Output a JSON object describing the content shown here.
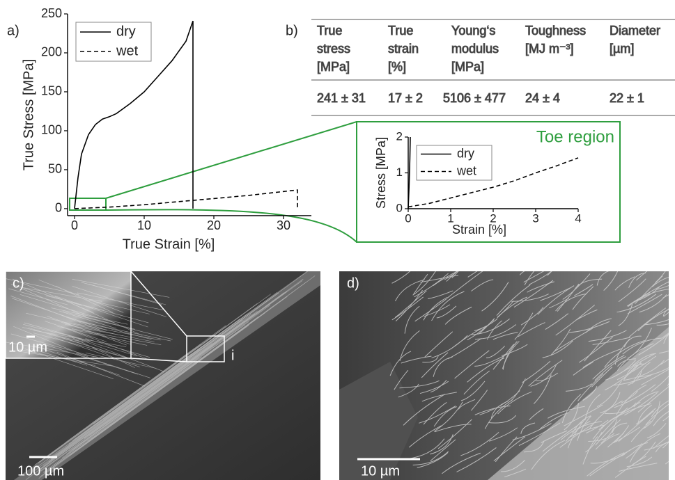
{
  "panel_labels": {
    "a": "a)",
    "b": "b)",
    "c": "c)",
    "d": "d)"
  },
  "chart_data": [
    {
      "type": "line",
      "xlabel": "True Strain [%]",
      "ylabel": "True Stress [MPa]",
      "xlim": [
        -1,
        34
      ],
      "ylim": [
        -9,
        250
      ],
      "xticks": [
        0,
        10,
        20,
        30
      ],
      "yticks": [
        0,
        50,
        100,
        150,
        200,
        250
      ],
      "legend": "upper left",
      "series": [
        {
          "name": "dry",
          "color": "#000000",
          "line_style": "solid",
          "x": [
            0,
            0.5,
            1,
            2,
            3,
            4,
            5,
            6,
            8,
            10,
            12,
            14,
            16,
            17,
            17
          ],
          "values": [
            0,
            40,
            70,
            95,
            108,
            115,
            118,
            122,
            135,
            150,
            170,
            190,
            215,
            241,
            0
          ]
        },
        {
          "name": "wet",
          "color": "#000000",
          "line_style": "dashed",
          "x": [
            0,
            5,
            10,
            15,
            20,
            25,
            30,
            32,
            32
          ],
          "values": [
            0,
            2,
            5,
            9,
            13,
            17,
            22,
            24,
            0
          ]
        }
      ]
    },
    {
      "type": "line",
      "title": "Toe region",
      "xlabel": "Strain [%]",
      "ylabel": "Stress [MPa]",
      "xlim": [
        0,
        4
      ],
      "ylim": [
        0,
        2
      ],
      "xticks": [
        0,
        1,
        2,
        3,
        4
      ],
      "yticks": [
        0,
        1,
        2
      ],
      "legend": "upper left",
      "series": [
        {
          "name": "dry",
          "color": "#000000",
          "line_style": "solid",
          "x": [
            0,
            0.02,
            0.04,
            0.05
          ],
          "values": [
            0,
            0.6,
            1.4,
            2
          ]
        },
        {
          "name": "wet",
          "color": "#000000",
          "line_style": "dashed",
          "x": [
            0,
            0.5,
            1,
            1.5,
            2,
            2.5,
            3,
            3.5,
            4
          ],
          "values": [
            0.05,
            0.15,
            0.3,
            0.45,
            0.6,
            0.78,
            1.0,
            1.2,
            1.42
          ]
        }
      ]
    }
  ],
  "table": {
    "header": [
      [
        "True",
        "stress",
        "[MPa]"
      ],
      [
        "True",
        "strain",
        "[%]"
      ],
      [
        "Young‘s",
        "modulus",
        "[MPa]"
      ],
      [
        "Toughness",
        "[MJ m⁻³]"
      ],
      [
        "Diameter",
        "[µm]"
      ]
    ],
    "rows": [
      [
        "241 ± 31",
        "17 ± 2",
        "5106 ± 477",
        "24 ± 4",
        "22 ± 1"
      ]
    ]
  },
  "images": {
    "c": {
      "inset_scale": "10 µm",
      "inset_label": "i",
      "scale": "100 µm"
    },
    "d": {
      "scale": "10 µm"
    }
  }
}
